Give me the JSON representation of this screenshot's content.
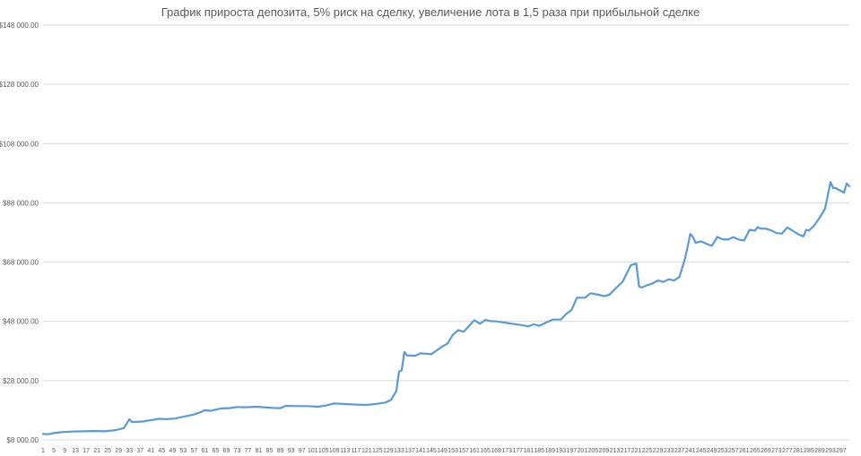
{
  "chart_data": {
    "type": "line",
    "title": "График прироста депозита, 5% риск на сделку, увеличение лота  в 1,5 раза при прибыльной сделке",
    "xlabel": "",
    "ylabel": "",
    "ylim": [
      8000,
      148000
    ],
    "xlim": [
      1,
      300
    ],
    "grid": true,
    "y_ticks": [
      "$8 000.00",
      "$28 000.00",
      "$48 000.00",
      "$68 000.00",
      "$88 000.00",
      "$108 000.00",
      "$128 000.00",
      "$148 000.00"
    ],
    "y_tick_values": [
      8000,
      28000,
      48000,
      68000,
      88000,
      108000,
      128000,
      148000
    ],
    "x_ticks": [
      "1",
      "5",
      "9",
      "13",
      "17",
      "21",
      "25",
      "29",
      "33",
      "37",
      "41",
      "45",
      "49",
      "53",
      "57",
      "61",
      "65",
      "69",
      "73",
      "77",
      "81",
      "85",
      "89",
      "93",
      "97",
      "101",
      "105",
      "109",
      "113",
      "117",
      "121",
      "125",
      "129",
      "133",
      "137",
      "141",
      "145",
      "149",
      "153",
      "157",
      "161",
      "165",
      "169",
      "173",
      "177",
      "181",
      "185",
      "189",
      "193",
      "197",
      "201",
      "205",
      "209",
      "213",
      "217",
      "221",
      "225",
      "229",
      "233",
      "237",
      "241",
      "245",
      "249",
      "253",
      "257",
      "261",
      "265",
      "269",
      "273",
      "277",
      "281",
      "285",
      "289",
      "293",
      "297"
    ],
    "series": [
      {
        "color": "#5b9bd5",
        "points": [
          [
            1,
            10000
          ],
          [
            3,
            9900
          ],
          [
            5,
            10300
          ],
          [
            8,
            10600
          ],
          [
            12,
            10800
          ],
          [
            16,
            10900
          ],
          [
            20,
            11000
          ],
          [
            24,
            10900
          ],
          [
            28,
            11300
          ],
          [
            31,
            12000
          ],
          [
            33,
            15000
          ],
          [
            34,
            14000
          ],
          [
            38,
            14200
          ],
          [
            42,
            14800
          ],
          [
            44,
            15100
          ],
          [
            47,
            15000
          ],
          [
            50,
            15200
          ],
          [
            53,
            15800
          ],
          [
            55,
            16200
          ],
          [
            57,
            16600
          ],
          [
            59,
            17200
          ],
          [
            61,
            18000
          ],
          [
            63,
            17800
          ],
          [
            65,
            18200
          ],
          [
            67,
            18600
          ],
          [
            70,
            18700
          ],
          [
            73,
            19100
          ],
          [
            76,
            19000
          ],
          [
            80,
            19200
          ],
          [
            83,
            19000
          ],
          [
            86,
            18800
          ],
          [
            89,
            18700
          ],
          [
            91,
            19500
          ],
          [
            95,
            19400
          ],
          [
            99,
            19400
          ],
          [
            103,
            19200
          ],
          [
            106,
            19600
          ],
          [
            109,
            20300
          ],
          [
            113,
            20100
          ],
          [
            117,
            19900
          ],
          [
            121,
            19800
          ],
          [
            125,
            20200
          ],
          [
            128,
            20600
          ],
          [
            130,
            21500
          ],
          [
            132,
            24500
          ],
          [
            133,
            31000
          ],
          [
            134,
            31500
          ],
          [
            135,
            37700
          ],
          [
            136,
            36500
          ],
          [
            139,
            36400
          ],
          [
            141,
            37200
          ],
          [
            143,
            37100
          ],
          [
            145,
            36900
          ],
          [
            147,
            38200
          ],
          [
            149,
            39500
          ],
          [
            151,
            40500
          ],
          [
            153,
            43500
          ],
          [
            155,
            45000
          ],
          [
            157,
            44500
          ],
          [
            160,
            47500
          ],
          [
            161,
            48400
          ],
          [
            163,
            47200
          ],
          [
            165,
            48500
          ],
          [
            167,
            48100
          ],
          [
            169,
            48000
          ],
          [
            172,
            47600
          ],
          [
            175,
            47200
          ],
          [
            178,
            46800
          ],
          [
            181,
            46300
          ],
          [
            183,
            47000
          ],
          [
            185,
            46500
          ],
          [
            188,
            47800
          ],
          [
            190,
            48600
          ],
          [
            193,
            48600
          ],
          [
            195,
            50500
          ],
          [
            197,
            51800
          ],
          [
            199,
            56000
          ],
          [
            202,
            56000
          ],
          [
            204,
            57500
          ],
          [
            207,
            57000
          ],
          [
            209,
            56500
          ],
          [
            211,
            57000
          ],
          [
            213,
            58800
          ],
          [
            216,
            61500
          ],
          [
            219,
            67000
          ],
          [
            221,
            67500
          ],
          [
            222,
            59800
          ],
          [
            223,
            59400
          ],
          [
            225,
            60200
          ],
          [
            227,
            60800
          ],
          [
            229,
            61800
          ],
          [
            231,
            61300
          ],
          [
            233,
            62200
          ],
          [
            235,
            61800
          ],
          [
            237,
            63000
          ],
          [
            239,
            69000
          ],
          [
            240,
            73000
          ],
          [
            241,
            77500
          ],
          [
            242,
            76500
          ],
          [
            243,
            74500
          ],
          [
            245,
            75000
          ],
          [
            247,
            74200
          ],
          [
            249,
            73500
          ],
          [
            251,
            76500
          ],
          [
            253,
            75700
          ],
          [
            255,
            75600
          ],
          [
            257,
            76400
          ],
          [
            259,
            75600
          ],
          [
            261,
            75300
          ],
          [
            263,
            78900
          ],
          [
            265,
            78600
          ],
          [
            266,
            79800
          ],
          [
            267,
            79300
          ],
          [
            269,
            79300
          ],
          [
            271,
            78700
          ],
          [
            273,
            77800
          ],
          [
            275,
            77600
          ],
          [
            277,
            79700
          ],
          [
            279,
            78600
          ],
          [
            281,
            77400
          ],
          [
            283,
            76700
          ],
          [
            284,
            78900
          ],
          [
            285,
            78600
          ],
          [
            287,
            80400
          ],
          [
            289,
            83000
          ],
          [
            291,
            86000
          ],
          [
            293,
            95000
          ],
          [
            294,
            93000
          ],
          [
            295,
            93000
          ],
          [
            296,
            92400
          ],
          [
            297,
            92000
          ],
          [
            298,
            91400
          ],
          [
            299,
            94500
          ],
          [
            300,
            93600
          ]
        ]
      }
    ]
  }
}
